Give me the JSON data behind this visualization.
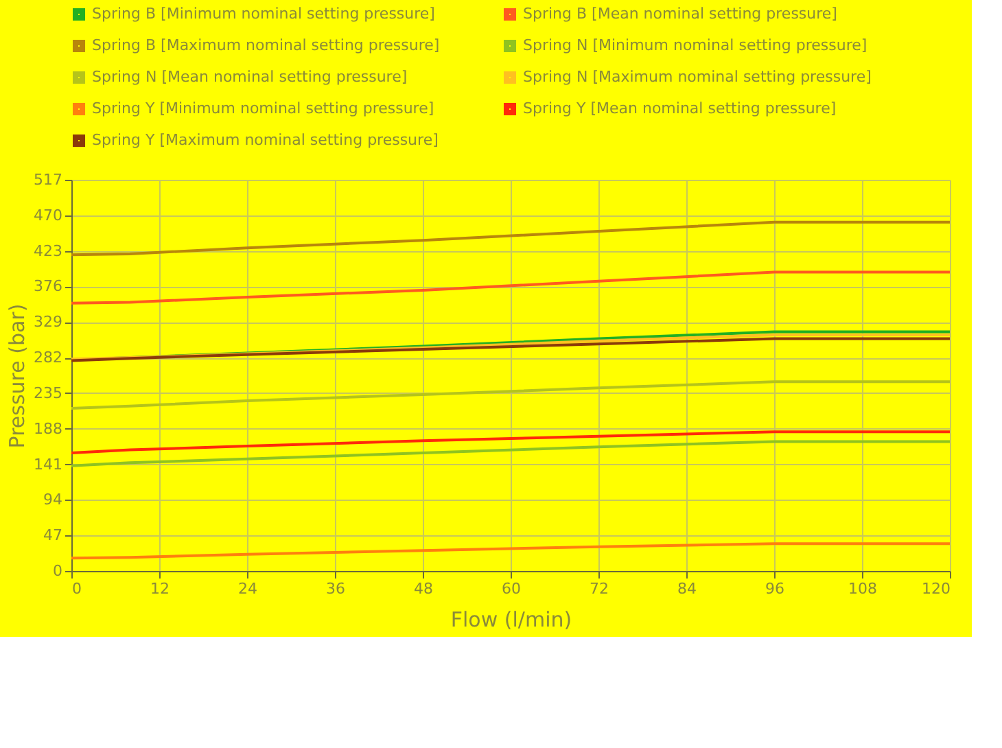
{
  "chart_data": {
    "type": "line",
    "xlabel": "Flow (l/min)",
    "ylabel": "Pressure (bar)",
    "x": [
      0,
      8,
      24,
      48,
      72,
      96,
      120
    ],
    "xlim": [
      0,
      120
    ],
    "xticks": [
      0,
      12,
      24,
      36,
      48,
      60,
      72,
      84,
      96,
      108,
      120
    ],
    "ylim": [
      0,
      517
    ],
    "yticks": [
      0,
      47,
      94,
      141,
      188,
      235,
      282,
      329,
      376,
      423,
      470,
      517
    ],
    "grid": true,
    "legend": "top",
    "marker": "none",
    "line_style": "solid",
    "series": [
      {
        "name": "Spring B [Minimum nominal setting pressure]",
        "color": "#22b022",
        "values": [
          279,
          282,
          288,
          297,
          307,
          316,
          316
        ]
      },
      {
        "name": "Spring B [Mean nominal setting pressure]",
        "color": "#ff5a1f",
        "values": [
          354,
          355,
          362,
          371,
          383,
          395,
          395
        ]
      },
      {
        "name": "Spring B [Maximum nominal setting pressure]",
        "color": "#b8860b",
        "values": [
          418,
          419,
          427,
          437,
          449,
          461,
          461
        ]
      },
      {
        "name": "Spring N [Minimum nominal setting pressure]",
        "color": "#8fc320",
        "values": [
          139,
          143,
          148,
          156,
          164,
          171,
          171
        ]
      },
      {
        "name": "Spring N [Mean nominal setting pressure]",
        "color": "#b5c41a",
        "values": [
          215,
          218,
          225,
          233,
          242,
          250,
          250
        ]
      },
      {
        "name": "Spring N [Maximum nominal setting pressure]",
        "color": "#ffc020",
        "values": [
          280,
          282,
          287,
          295,
          304,
          312,
          312
        ]
      },
      {
        "name": "Spring Y [Minimum nominal setting pressure]",
        "color": "#ff7f0e",
        "values": [
          17,
          18,
          22,
          27,
          32,
          36,
          36
        ]
      },
      {
        "name": "Spring Y [Mean nominal setting pressure]",
        "color": "#ff2a0a",
        "values": [
          156,
          160,
          165,
          172,
          178,
          184,
          184
        ]
      },
      {
        "name": "Spring Y [Maximum nominal setting pressure]",
        "color": "#8b3a0a",
        "values": [
          278,
          281,
          286,
          293,
          300,
          307,
          307
        ]
      }
    ]
  }
}
